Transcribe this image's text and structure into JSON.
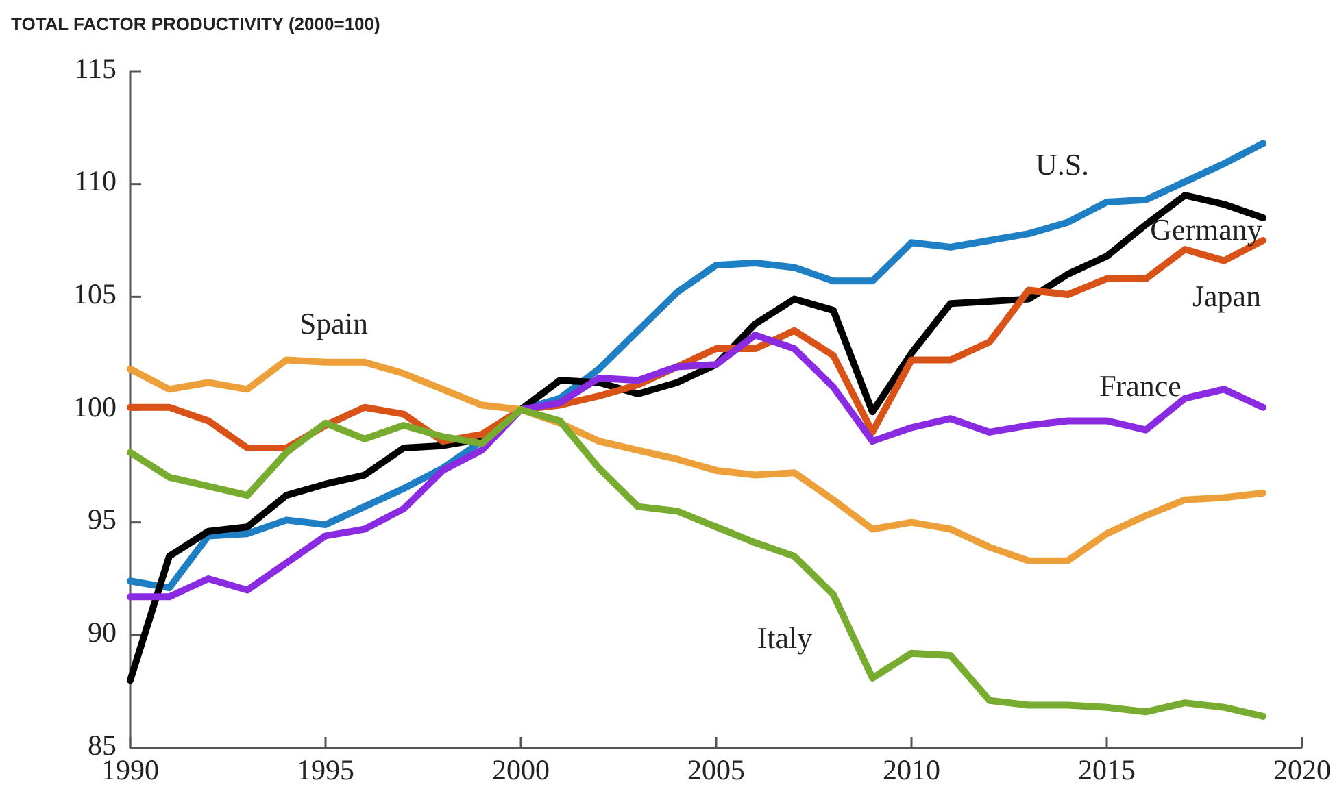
{
  "chart_data": {
    "type": "line",
    "title": "TOTAL FACTOR PRODUCTIVITY (2000=100)",
    "x": [
      1990,
      1991,
      1992,
      1993,
      1994,
      1995,
      1996,
      1997,
      1998,
      1999,
      2000,
      2001,
      2002,
      2003,
      2004,
      2005,
      2006,
      2007,
      2008,
      2009,
      2010,
      2011,
      2012,
      2013,
      2014,
      2015,
      2016,
      2017,
      2018,
      2019
    ],
    "xlim": [
      1990,
      2020
    ],
    "xticks": [
      1990,
      1995,
      2000,
      2005,
      2010,
      2015,
      2020
    ],
    "ylim": [
      85,
      115
    ],
    "yticks": [
      85,
      90,
      95,
      100,
      105,
      110,
      115
    ],
    "grid": false,
    "marker": "none",
    "line_style": "solid",
    "series": [
      {
        "name": "U.S.",
        "color": "#1f7fc4",
        "values": [
          92.4,
          92.1,
          94.4,
          94.5,
          95.1,
          94.9,
          95.7,
          96.5,
          97.4,
          98.6,
          100,
          100.5,
          101.8,
          103.5,
          105.2,
          106.4,
          106.5,
          106.3,
          105.7,
          105.7,
          107.4,
          107.2,
          107.5,
          107.8,
          108.3,
          109.2,
          109.3,
          110.1,
          110.9,
          111.8
        ]
      },
      {
        "name": "Germany",
        "color": "#000000",
        "values": [
          88,
          93.5,
          94.6,
          94.8,
          96.2,
          96.7,
          97.1,
          98.3,
          98.4,
          98.7,
          100,
          101.3,
          101.2,
          100.7,
          101.2,
          102,
          103.8,
          104.9,
          104.4,
          99.9,
          102.5,
          104.7,
          104.8,
          104.9,
          106,
          106.8,
          108.2,
          109.5,
          109.1,
          108.5
        ]
      },
      {
        "name": "Japan",
        "color": "#d95319",
        "values": [
          100.1,
          100.1,
          99.5,
          98.3,
          98.3,
          99.3,
          100.1,
          99.8,
          98.6,
          98.9,
          100,
          100.2,
          100.6,
          101.1,
          101.9,
          102.7,
          102.7,
          103.5,
          102.4,
          99,
          102.2,
          102.2,
          103,
          105.3,
          105.1,
          105.8,
          105.8,
          107.1,
          106.6,
          107.5
        ]
      },
      {
        "name": "France",
        "color": "#8a2be2",
        "values": [
          91.7,
          91.7,
          92.5,
          92,
          93.2,
          94.4,
          94.7,
          95.6,
          97.3,
          98.2,
          100,
          100.3,
          101.4,
          101.3,
          101.9,
          102,
          103.3,
          102.7,
          101,
          98.6,
          99.2,
          99.6,
          99,
          99.3,
          99.5,
          99.5,
          99.1,
          100.5,
          100.9,
          100.1
        ]
      },
      {
        "name": "Spain",
        "color": "#eda03a",
        "values": [
          101.8,
          100.9,
          101.2,
          100.9,
          102.2,
          102.1,
          102.1,
          101.6,
          100.9,
          100.2,
          100,
          99.4,
          98.6,
          98.2,
          97.8,
          97.3,
          97.1,
          97.2,
          96,
          94.7,
          95,
          94.7,
          93.9,
          93.3,
          93.3,
          94.5,
          95.3,
          96,
          96.1,
          96.3
        ]
      },
      {
        "name": "Italy",
        "color": "#77ac30",
        "values": [
          98.1,
          97,
          96.6,
          96.2,
          98.1,
          99.4,
          98.7,
          99.3,
          98.8,
          98.5,
          100,
          99.5,
          97.4,
          95.7,
          95.5,
          94.8,
          94.1,
          93.5,
          91.8,
          88.1,
          89.2,
          89.1,
          87.1,
          86.9,
          86.9,
          86.8,
          86.6,
          87,
          86.8,
          86.4
        ]
      }
    ]
  }
}
